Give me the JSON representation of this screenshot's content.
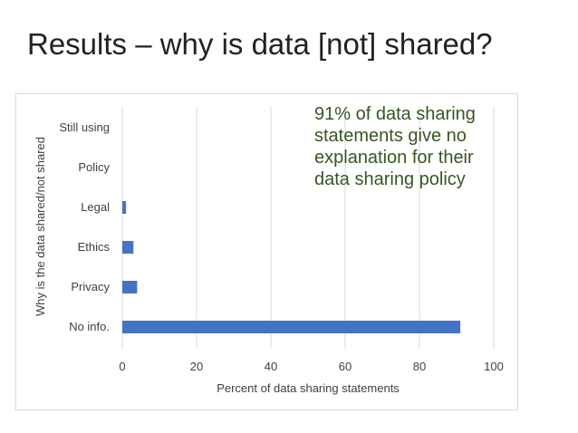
{
  "slide": {
    "title": "Results – why is data [not] shared?"
  },
  "callout": {
    "lines": [
      "91% of data sharing",
      "statements give no",
      "explanation for their",
      "data sharing policy"
    ]
  },
  "chart_data": {
    "type": "bar",
    "orientation": "horizontal",
    "categories": [
      "Still using",
      "Policy",
      "Legal",
      "Ethics",
      "Privacy",
      "No info."
    ],
    "values": [
      0,
      0,
      1,
      3,
      4,
      91
    ],
    "xlabel": "Percent of data sharing statements",
    "ylabel": "Why is the data shared/not shared",
    "xlim": [
      0,
      100
    ],
    "xticks": [
      "0",
      "20",
      "40",
      "60",
      "80",
      "100"
    ],
    "grid": true,
    "bar_color": "#4472c4",
    "gridline_color": "#d9d9d9"
  }
}
